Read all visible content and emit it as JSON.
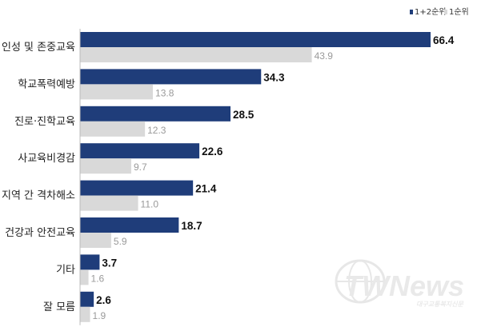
{
  "chart_data": {
    "type": "bar",
    "orientation": "horizontal",
    "categories": [
      "인성 및 존중교육",
      "학교폭력예방",
      "진로·진학교육",
      "사교육비경감",
      "지역 간 격차해소",
      "건강과 안전교육",
      "기타",
      "잘 모름"
    ],
    "series": [
      {
        "name": "1+2순위",
        "values": [
          66.4,
          34.3,
          28.5,
          22.6,
          21.4,
          18.7,
          3.7,
          2.6
        ],
        "color": "#1f3d7a"
      },
      {
        "name": "1순위",
        "values": [
          43.9,
          13.8,
          12.3,
          9.7,
          11.0,
          5.9,
          1.6,
          1.9
        ],
        "color": "#d9d9d9"
      }
    ],
    "xlim": [
      0,
      66.4
    ],
    "legend": "top-right",
    "grid": false
  },
  "watermark": {
    "logo_text": "TWNews",
    "subtext": "대구교통복지신문"
  }
}
